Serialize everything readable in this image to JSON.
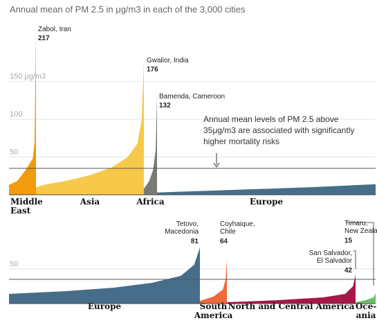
{
  "chart_data": {
    "type": "area",
    "title": "Annual mean of PM 2.5 in μg/m3 in each of the 3,000 cities",
    "threshold": 35,
    "annotation_text": [
      "Annual mean levels of PM 2.5 above",
      "35μg/m3 are associated with significantly",
      "higher mortality risks"
    ],
    "panels": [
      {
        "ylim": [
          0,
          225
        ],
        "yticks": [
          {
            "value": 50,
            "label": "50"
          },
          {
            "value": 100,
            "label": "100"
          },
          {
            "value": 150,
            "label": "150 μg/m3"
          }
        ],
        "regions": [
          {
            "name_lines": [
              "Middle",
              "East"
            ],
            "color": "#f29b0c",
            "points": [
              [
                0,
                13
              ],
              [
                0.3,
                18
              ],
              [
                0.6,
                32
              ],
              [
                0.88,
                48
              ],
              [
                0.95,
                70
              ],
              [
                1,
                217
              ]
            ],
            "callout": {
              "name": "Zabol, Iran",
              "value": "217"
            }
          },
          {
            "name_lines": [
              "Asia"
            ],
            "color": "#f7c948",
            "points": [
              [
                0,
                10
              ],
              [
                0.1,
                14
              ],
              [
                0.3,
                19
              ],
              [
                0.5,
                26
              ],
              [
                0.7,
                36
              ],
              [
                0.85,
                50
              ],
              [
                0.94,
                68
              ],
              [
                0.98,
                100
              ],
              [
                1,
                176
              ]
            ],
            "callout": {
              "name": "Gwalior, India",
              "value": "176"
            }
          },
          {
            "name_lines": [
              "Africa"
            ],
            "color": "#7a7a74",
            "points": [
              [
                0,
                8
              ],
              [
                0.4,
                18
              ],
              [
                0.7,
                33
              ],
              [
                0.9,
                60
              ],
              [
                1,
                132
              ]
            ],
            "callout": {
              "name": "Bamenda, Cameroon",
              "value": "132"
            }
          },
          {
            "name_lines": [
              "Europe"
            ],
            "color": "#466e8a",
            "points": [
              [
                0,
                3
              ],
              [
                0.3,
                6
              ],
              [
                0.7,
                10
              ],
              [
                1,
                14
              ]
            ]
          }
        ]
      },
      {
        "ylim": [
          0,
          100
        ],
        "yticks": [
          {
            "value": 50,
            "label": "50"
          }
        ],
        "regions": [
          {
            "name_lines": [
              "Europe"
            ],
            "color": "#466e8a",
            "points": [
              [
                0,
                14
              ],
              [
                0.3,
                18
              ],
              [
                0.55,
                23
              ],
              [
                0.75,
                30
              ],
              [
                0.9,
                40
              ],
              [
                0.97,
                56
              ],
              [
                1,
                81
              ]
            ],
            "callout": {
              "name": "Tetovo, Macedonia",
              "value": "81"
            }
          },
          {
            "name_lines": [
              "South",
              "America"
            ],
            "color": "#f06a3a",
            "points": [
              [
                0,
                4
              ],
              [
                0.5,
                10
              ],
              [
                0.85,
                20
              ],
              [
                0.95,
                35
              ],
              [
                1,
                64
              ]
            ],
            "callout": {
              "name": "Coyhaique, Chile",
              "value": "64"
            }
          },
          {
            "name_lines": [
              "North and Central America"
            ],
            "color": "#a8174a",
            "points": [
              [
                0,
                2
              ],
              [
                0.4,
                5
              ],
              [
                0.75,
                9
              ],
              [
                0.92,
                14
              ],
              [
                0.98,
                25
              ],
              [
                1,
                42
              ]
            ],
            "callout": {
              "name": "San Salvador, El Salvador",
              "value": "42"
            }
          },
          {
            "name_lines": [
              "Oce-",
              "ania"
            ],
            "color": "#6cbf6a",
            "points": [
              [
                0,
                2
              ],
              [
                0.5,
                5
              ],
              [
                0.9,
                9
              ],
              [
                1,
                15
              ]
            ],
            "callout": {
              "name": "Timaru, New Zealand",
              "value": "15"
            }
          }
        ]
      }
    ]
  }
}
